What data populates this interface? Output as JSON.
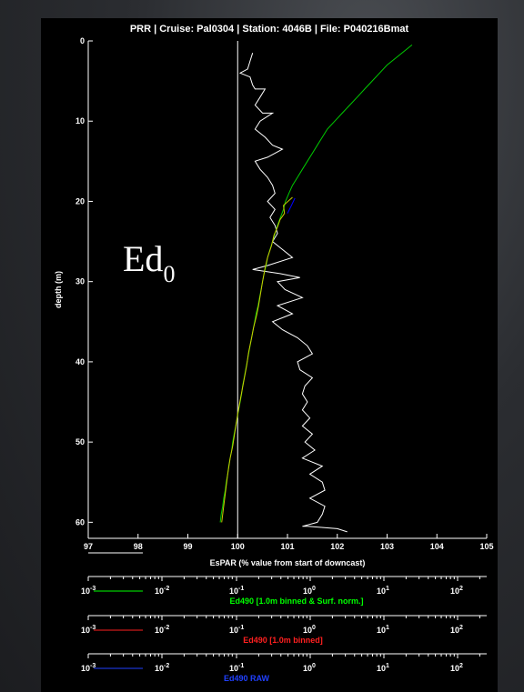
{
  "chart_data": {
    "type": "line",
    "title": "PRR | Cruise: Pal0304 | Station: 4046B | File: P040216Bmat",
    "ylabel": "depth (m)",
    "xlabel": "EsPAR (% value from start of downcast)",
    "xlim": [
      97,
      105
    ],
    "ylim": [
      0,
      62
    ],
    "y_inverted": true,
    "x_ticks": [
      "97",
      "98",
      "99",
      "100",
      "101",
      "102",
      "103",
      "104",
      "105"
    ],
    "y_ticks": [
      "0",
      "10",
      "20",
      "30",
      "40",
      "50",
      "60"
    ],
    "annotation": {
      "base": "Ed",
      "sub": "0"
    },
    "reference_line": {
      "x": 100,
      "color": "#ffffff"
    },
    "series": [
      {
        "name": "",
        "color": "#ffffff",
        "points": [
          [
            100.3,
            1.5
          ],
          [
            100.25,
            2.5
          ],
          [
            100.2,
            3.5
          ],
          [
            100.05,
            4
          ],
          [
            100.25,
            4.5
          ],
          [
            100.3,
            5.5
          ],
          [
            100.35,
            6
          ],
          [
            100.55,
            6
          ],
          [
            100.45,
            7
          ],
          [
            100.35,
            8
          ],
          [
            100.5,
            9
          ],
          [
            100.7,
            9
          ],
          [
            100.45,
            10
          ],
          [
            100.35,
            11
          ],
          [
            100.55,
            12
          ],
          [
            100.7,
            13
          ],
          [
            100.9,
            13.5
          ],
          [
            100.6,
            14.5
          ],
          [
            100.35,
            15
          ],
          [
            100.45,
            16
          ],
          [
            100.6,
            17
          ],
          [
            100.7,
            18
          ],
          [
            100.75,
            19
          ],
          [
            100.6,
            20
          ],
          [
            100.75,
            21
          ],
          [
            100.65,
            22
          ],
          [
            100.75,
            23
          ],
          [
            100.8,
            24
          ],
          [
            100.7,
            25
          ],
          [
            100.9,
            26
          ],
          [
            101.1,
            27
          ],
          [
            100.6,
            28
          ],
          [
            100.3,
            28.5
          ],
          [
            100.85,
            29
          ],
          [
            101.25,
            29.5
          ],
          [
            100.8,
            30
          ],
          [
            100.95,
            31
          ],
          [
            101.3,
            32
          ],
          [
            100.8,
            33
          ],
          [
            101.1,
            34
          ],
          [
            100.7,
            35
          ],
          [
            100.9,
            36
          ],
          [
            101.2,
            37
          ],
          [
            101.4,
            38
          ],
          [
            101.5,
            39
          ],
          [
            101.2,
            40
          ],
          [
            101.25,
            41
          ],
          [
            101.5,
            42
          ],
          [
            101.35,
            43
          ],
          [
            101.3,
            44
          ],
          [
            101.4,
            45
          ],
          [
            101.3,
            46
          ],
          [
            101.45,
            47
          ],
          [
            101.3,
            48
          ],
          [
            101.5,
            49
          ],
          [
            101.35,
            50
          ],
          [
            101.55,
            51
          ],
          [
            101.3,
            52
          ],
          [
            101.7,
            53
          ],
          [
            101.45,
            54
          ],
          [
            101.7,
            55
          ],
          [
            101.75,
            56
          ],
          [
            101.45,
            57
          ],
          [
            101.75,
            58
          ],
          [
            101.7,
            59
          ],
          [
            101.6,
            60
          ],
          [
            101.3,
            60.5
          ],
          [
            101.4,
            60.5
          ],
          [
            102.0,
            60.8
          ],
          [
            102.2,
            61.2
          ]
        ]
      },
      {
        "name": "Ed490 [1.0m binned & Surf. norm.]",
        "color": "#00cc00",
        "points": [
          [
            103.5,
            0.5
          ],
          [
            103.2,
            2
          ],
          [
            103.0,
            3
          ],
          [
            102.85,
            4
          ],
          [
            102.7,
            5
          ],
          [
            102.55,
            6
          ],
          [
            102.4,
            7
          ],
          [
            102.25,
            8
          ],
          [
            102.1,
            9
          ],
          [
            101.95,
            10
          ],
          [
            101.8,
            11
          ],
          [
            101.7,
            12
          ],
          [
            101.6,
            13
          ],
          [
            101.5,
            14
          ],
          [
            101.4,
            15
          ],
          [
            101.3,
            16
          ],
          [
            101.2,
            17
          ],
          [
            101.1,
            18
          ],
          [
            101.03,
            19
          ],
          [
            100.96,
            20
          ],
          [
            100.92,
            21
          ],
          [
            100.86,
            22
          ],
          [
            100.8,
            23
          ],
          [
            100.75,
            24
          ],
          [
            100.7,
            25
          ],
          [
            100.65,
            26
          ],
          [
            100.6,
            27
          ],
          [
            100.57,
            28
          ],
          [
            100.53,
            29
          ],
          [
            100.5,
            30
          ],
          [
            100.47,
            31
          ],
          [
            100.44,
            32
          ],
          [
            100.41,
            33
          ],
          [
            100.37,
            34
          ],
          [
            100.34,
            35
          ],
          [
            100.31,
            36
          ],
          [
            100.28,
            37
          ],
          [
            100.25,
            38
          ],
          [
            100.22,
            39
          ],
          [
            100.19,
            40
          ],
          [
            100.16,
            41
          ],
          [
            100.13,
            42
          ],
          [
            100.1,
            43
          ],
          [
            100.08,
            44
          ],
          [
            100.05,
            45
          ],
          [
            100.02,
            46
          ],
          [
            99.99,
            47
          ],
          [
            99.96,
            48
          ],
          [
            99.93,
            49
          ],
          [
            99.9,
            50
          ],
          [
            99.88,
            51
          ],
          [
            99.85,
            52
          ],
          [
            99.82,
            53
          ],
          [
            99.8,
            54
          ],
          [
            99.77,
            55
          ],
          [
            99.75,
            56
          ],
          [
            99.72,
            57
          ],
          [
            99.7,
            58
          ],
          [
            99.67,
            59
          ],
          [
            99.65,
            60
          ]
        ]
      },
      {
        "name": "Ed490 [1.0m binned]",
        "color": "#cccc00",
        "points": [
          [
            101.1,
            19.5
          ],
          [
            100.92,
            20.5
          ],
          [
            100.94,
            21.5
          ],
          [
            100.85,
            22.3
          ],
          [
            100.8,
            23.2
          ],
          [
            100.73,
            24.2
          ],
          [
            100.68,
            25.5
          ],
          [
            100.6,
            27
          ],
          [
            100.55,
            28.3
          ],
          [
            100.5,
            30
          ],
          [
            100.46,
            31.5
          ],
          [
            100.42,
            33
          ],
          [
            100.38,
            34.2
          ],
          [
            100.32,
            35.7
          ],
          [
            100.28,
            37
          ],
          [
            100.22,
            38.8
          ],
          [
            100.18,
            40.5
          ],
          [
            100.12,
            42.5
          ],
          [
            100.06,
            44.5
          ],
          [
            100.0,
            46.5
          ],
          [
            99.95,
            48.5
          ],
          [
            99.9,
            50.5
          ],
          [
            99.85,
            52
          ],
          [
            99.8,
            54
          ],
          [
            99.76,
            56
          ],
          [
            99.72,
            58
          ],
          [
            99.68,
            60
          ]
        ]
      },
      {
        "name": "Ed490 RAW",
        "color": "#0000ff",
        "points": [
          [
            101.15,
            19.6
          ],
          [
            101.08,
            20.5
          ],
          [
            101.0,
            21.5
          ]
        ]
      }
    ],
    "legend": [
      {
        "label": "",
        "color": "#ffffff"
      },
      {
        "label": "Ed490 [1.0m binned & Surf. norm.]",
        "color": "#00ff00",
        "axis_ticks": [
          "10-3",
          "10-2",
          "10-1",
          "100",
          "101",
          "102"
        ]
      },
      {
        "label": "Ed490 [1.0m binned]",
        "color": "#ff2020",
        "axis_ticks": [
          "10-3",
          "10-2",
          "10-1",
          "100",
          "101",
          "102"
        ]
      },
      {
        "label": "Ed490 RAW",
        "color": "#2040ff",
        "axis_ticks": [
          "10-3",
          "10-2",
          "10-1",
          "100",
          "101",
          "102"
        ]
      }
    ]
  }
}
